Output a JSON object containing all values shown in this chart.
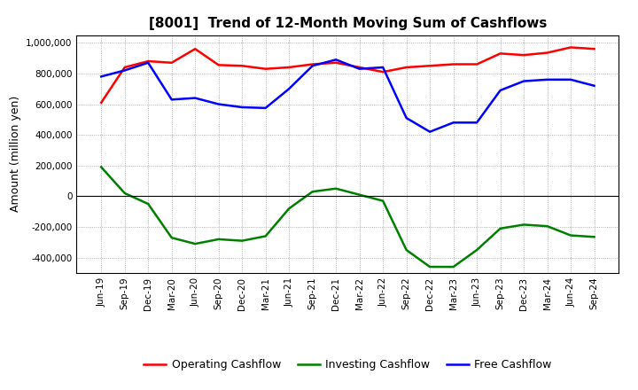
{
  "title": "[8001]  Trend of 12-Month Moving Sum of Cashflows",
  "ylabel": "Amount (million yen)",
  "ylim": [
    -500000,
    1050000
  ],
  "yticks": [
    -400000,
    -200000,
    0,
    200000,
    400000,
    600000,
    800000,
    1000000
  ],
  "background_color": "#ffffff",
  "plot_bg_color": "#ffffff",
  "x_labels": [
    "Jun-19",
    "Sep-19",
    "Dec-19",
    "Mar-20",
    "Jun-20",
    "Sep-20",
    "Dec-20",
    "Mar-21",
    "Jun-21",
    "Sep-21",
    "Dec-21",
    "Mar-22",
    "Jun-22",
    "Sep-22",
    "Dec-22",
    "Mar-23",
    "Jun-23",
    "Sep-23",
    "Dec-23",
    "Mar-24",
    "Jun-24",
    "Sep-24"
  ],
  "operating": [
    610000,
    840000,
    880000,
    870000,
    960000,
    855000,
    850000,
    830000,
    840000,
    860000,
    870000,
    840000,
    810000,
    840000,
    850000,
    860000,
    860000,
    930000,
    920000,
    935000,
    970000,
    960000
  ],
  "investing": [
    190000,
    20000,
    -50000,
    -270000,
    -310000,
    -280000,
    -290000,
    -260000,
    -80000,
    30000,
    50000,
    10000,
    -30000,
    -350000,
    -460000,
    -460000,
    -350000,
    -210000,
    -185000,
    -195000,
    -255000,
    -265000
  ],
  "free": [
    780000,
    820000,
    870000,
    630000,
    640000,
    600000,
    580000,
    575000,
    700000,
    850000,
    890000,
    830000,
    840000,
    510000,
    420000,
    480000,
    480000,
    690000,
    750000,
    760000,
    760000,
    720000
  ],
  "op_color": "#ff0000",
  "inv_color": "#008000",
  "free_color": "#0000ff",
  "line_width": 1.8,
  "title_fontsize": 11,
  "legend_fontsize": 9,
  "tick_fontsize": 7.5,
  "ylabel_fontsize": 9
}
